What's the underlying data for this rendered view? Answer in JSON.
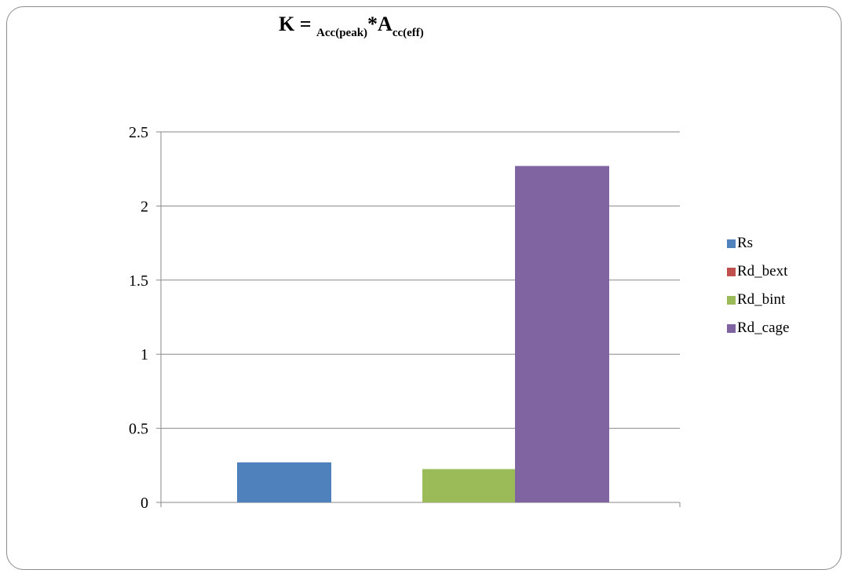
{
  "title": {
    "k": "K = ",
    "sub1": "Acc(peak)",
    "star": "*A",
    "sub2": "cc(eff)"
  },
  "chart_data": {
    "type": "bar",
    "categories": [
      ""
    ],
    "series": [
      {
        "name": "Rs",
        "values": [
          0.27
        ],
        "color": "#4f81bd"
      },
      {
        "name": "Rd_bext",
        "values": [
          0
        ],
        "color": "#c0504d"
      },
      {
        "name": "Rd_bint",
        "values": [
          0.225
        ],
        "color": "#9bbb59"
      },
      {
        "name": "Rd_cage",
        "values": [
          2.27
        ],
        "color": "#8064a2"
      }
    ],
    "ylim": [
      0,
      2.5
    ],
    "yticks": [
      0,
      0.5,
      1,
      1.5,
      2,
      2.5
    ],
    "ytick_labels": [
      "0",
      "0.5",
      "1",
      "1.5",
      "2",
      "2.5"
    ],
    "xlabel": "",
    "ylabel": "",
    "grid": true,
    "legend": "right",
    "gridline_color": "#888888"
  }
}
